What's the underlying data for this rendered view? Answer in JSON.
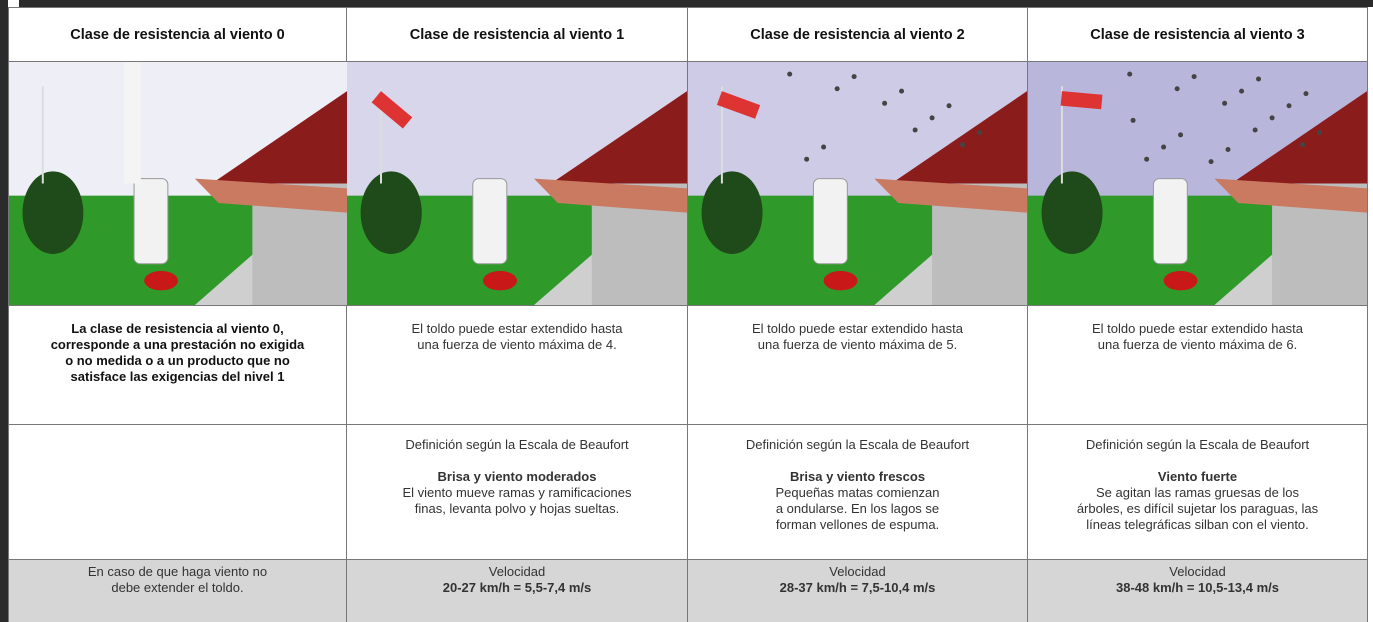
{
  "columns": [
    {
      "header": "Clase de resistencia al viento 0",
      "description": [
        "La clase de resistencia al viento 0,",
        "corresponde a una prestación no exigida",
        "o no medida o a un producto que no",
        "satisface las exigencias del nivel 1"
      ],
      "note": [
        "En caso de que haga viento no",
        "debe extender el toldo."
      ]
    },
    {
      "header": "Clase de resistencia al viento 1",
      "description": [
        "El toldo puede estar extendido hasta",
        "una fuerza de viento máxima de 4."
      ],
      "definition": {
        "intro": "Definición según la Escala de Beaufort",
        "term": "Brisa y viento moderados",
        "text": [
          "El viento mueve ramas y ramificaciones",
          "finas, levanta polvo y hojas sueltas."
        ]
      },
      "velocity": {
        "label": "Velocidad",
        "value": "20-27 km/h = 5,5-7,4 m/s"
      }
    },
    {
      "header": "Clase de resistencia al viento 2",
      "description": [
        "El toldo puede estar extendido hasta",
        "una fuerza de viento máxima de 5."
      ],
      "definition": {
        "intro": "Definición según la Escala de Beaufort",
        "term": "Brisa y viento frescos",
        "text": [
          "Pequeñas matas comienzan",
          "a ondularse. En los lagos se",
          "forman vellones de espuma."
        ]
      },
      "velocity": {
        "label": "Velocidad",
        "value": "28-37 km/h = 7,5-10,4 m/s"
      }
    },
    {
      "header": "Clase de resistencia al viento 3",
      "description": [
        "El toldo puede estar extendido hasta",
        "una fuerza de viento máxima de 6."
      ],
      "definition": {
        "intro": "Definición según la Escala de Beaufort",
        "term": "Viento fuerte",
        "text": [
          "Se agitan las ramas gruesas de los",
          "árboles, es difícil sujetar los paraguas, las",
          "líneas telegráficas silban con el viento."
        ]
      },
      "velocity": {
        "label": "Velocidad",
        "value": "38-48 km/h = 10,5-13,4 m/s"
      }
    }
  ]
}
